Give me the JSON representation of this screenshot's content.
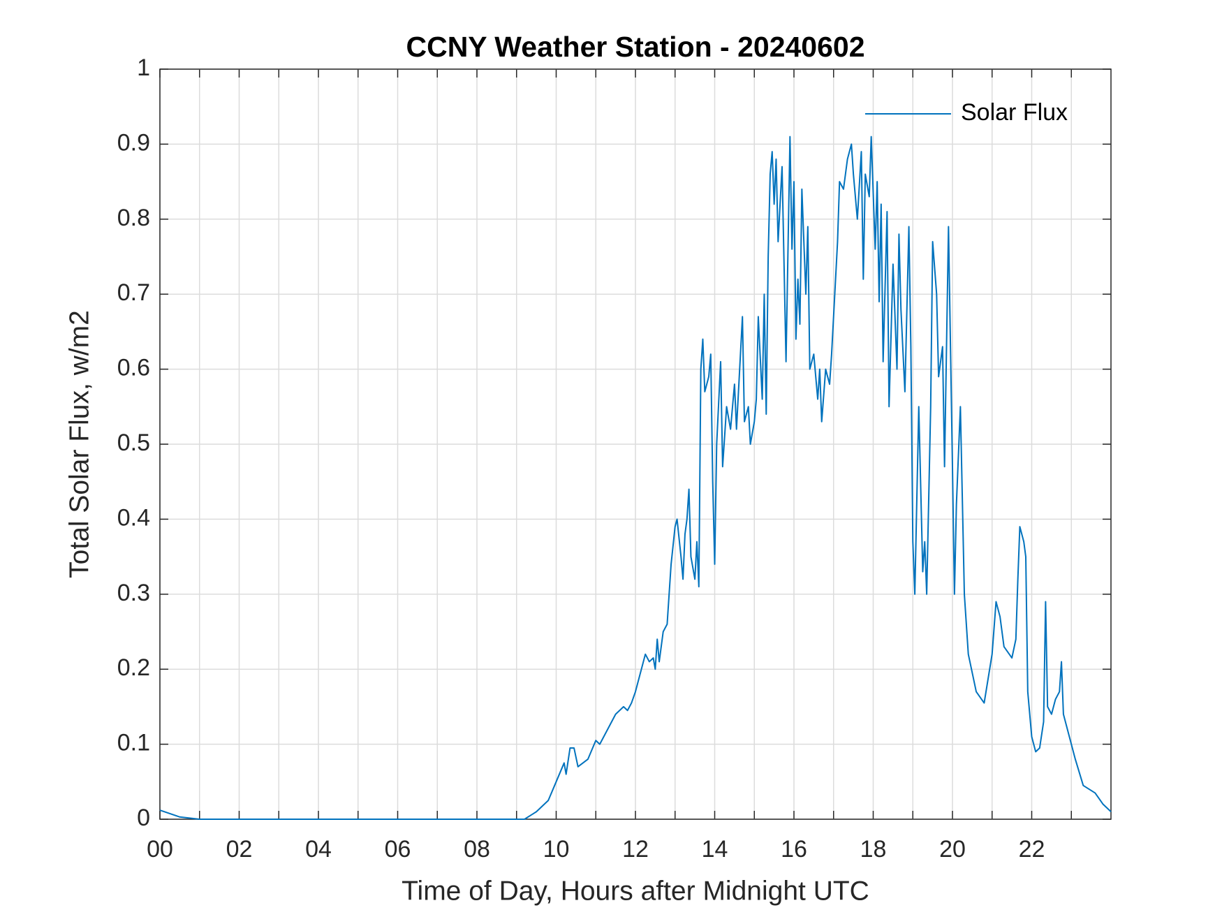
{
  "chart_data": {
    "type": "line",
    "title": "CCNY Weather Station - 20240602",
    "xlabel": "Time of Day, Hours after Midnight UTC",
    "ylabel": "Total Solar Flux, w/m2",
    "x": [
      0,
      0.5,
      1,
      9,
      9.2,
      9.5,
      9.8,
      10,
      10.2,
      10.25,
      10.35,
      10.45,
      10.55,
      10.8,
      11,
      11.1,
      11.3,
      11.5,
      11.7,
      11.8,
      11.9,
      12,
      12.05,
      12.15,
      12.25,
      12.35,
      12.45,
      12.5,
      12.55,
      12.6,
      12.7,
      12.8,
      12.9,
      13,
      13.05,
      13.15,
      13.2,
      13.25,
      13.3,
      13.35,
      13.4,
      13.5,
      13.55,
      13.6,
      13.65,
      13.7,
      13.75,
      13.85,
      13.9,
      13.95,
      14,
      14.05,
      14.15,
      14.2,
      14.3,
      14.4,
      14.5,
      14.55,
      14.6,
      14.7,
      14.75,
      14.85,
      14.9,
      15,
      15.05,
      15.1,
      15.2,
      15.25,
      15.3,
      15.35,
      15.4,
      15.45,
      15.5,
      15.55,
      15.6,
      15.7,
      15.8,
      15.9,
      15.95,
      16,
      16.05,
      16.1,
      16.15,
      16.2,
      16.3,
      16.35,
      16.4,
      16.5,
      16.6,
      16.65,
      16.7,
      16.8,
      16.9,
      16.95,
      17.05,
      17.1,
      17.15,
      17.25,
      17.35,
      17.45,
      17.5,
      17.6,
      17.7,
      17.75,
      17.8,
      17.9,
      17.95,
      18.05,
      18.1,
      18.15,
      18.2,
      18.25,
      18.35,
      18.4,
      18.5,
      18.6,
      18.65,
      18.7,
      18.8,
      18.9,
      18.95,
      19,
      19.05,
      19.15,
      19.25,
      19.3,
      19.35,
      19.45,
      19.5,
      19.6,
      19.65,
      19.75,
      19.8,
      19.9,
      20,
      20.05,
      20.1,
      20.2,
      20.3,
      20.4,
      20.6,
      20.8,
      21,
      21.1,
      21.2,
      21.3,
      21.5,
      21.6,
      21.65,
      21.7,
      21.8,
      21.85,
      21.9,
      22,
      22.1,
      22.2,
      22.3,
      22.35,
      22.4,
      22.5,
      22.6,
      22.7,
      22.75,
      22.8,
      22.95,
      23.1,
      23.3,
      23.6,
      23.8,
      24
    ],
    "series": [
      {
        "name": "Solar Flux",
        "color": "#0072BD",
        "values": [
          0.012,
          0.003,
          0,
          0,
          0,
          0.01,
          0.025,
          0.05,
          0.075,
          0.06,
          0.095,
          0.095,
          0.07,
          0.08,
          0.105,
          0.1,
          0.12,
          0.14,
          0.15,
          0.145,
          0.155,
          0.17,
          0.18,
          0.2,
          0.22,
          0.21,
          0.215,
          0.2,
          0.24,
          0.21,
          0.25,
          0.26,
          0.34,
          0.39,
          0.4,
          0.35,
          0.32,
          0.38,
          0.4,
          0.44,
          0.35,
          0.32,
          0.37,
          0.31,
          0.6,
          0.64,
          0.57,
          0.59,
          0.62,
          0.45,
          0.34,
          0.5,
          0.61,
          0.47,
          0.55,
          0.52,
          0.58,
          0.52,
          0.57,
          0.67,
          0.53,
          0.55,
          0.5,
          0.53,
          0.56,
          0.67,
          0.56,
          0.7,
          0.54,
          0.75,
          0.86,
          0.89,
          0.82,
          0.88,
          0.77,
          0.87,
          0.61,
          0.91,
          0.76,
          0.85,
          0.64,
          0.72,
          0.66,
          0.84,
          0.7,
          0.79,
          0.6,
          0.62,
          0.56,
          0.6,
          0.53,
          0.6,
          0.58,
          0.62,
          0.72,
          0.77,
          0.85,
          0.84,
          0.88,
          0.9,
          0.86,
          0.8,
          0.89,
          0.72,
          0.86,
          0.83,
          0.91,
          0.76,
          0.85,
          0.69,
          0.82,
          0.61,
          0.81,
          0.55,
          0.74,
          0.6,
          0.78,
          0.68,
          0.57,
          0.79,
          0.63,
          0.37,
          0.3,
          0.55,
          0.33,
          0.37,
          0.3,
          0.55,
          0.77,
          0.7,
          0.59,
          0.63,
          0.47,
          0.79,
          0.47,
          0.3,
          0.42,
          0.55,
          0.3,
          0.22,
          0.17,
          0.155,
          0.22,
          0.29,
          0.27,
          0.23,
          0.215,
          0.24,
          0.32,
          0.39,
          0.37,
          0.35,
          0.17,
          0.11,
          0.09,
          0.095,
          0.13,
          0.29,
          0.15,
          0.14,
          0.16,
          0.17,
          0.21,
          0.14,
          0.11,
          0.08,
          0.045,
          0.035,
          0.02,
          0.01
        ]
      }
    ],
    "xlim": [
      0,
      24
    ],
    "xticks": [
      {
        "value": 0,
        "label": "00"
      },
      {
        "value": 2,
        "label": "02"
      },
      {
        "value": 4,
        "label": "04"
      },
      {
        "value": 6,
        "label": "06"
      },
      {
        "value": 8,
        "label": "08"
      },
      10,
      12,
      14,
      16,
      18,
      20,
      22
    ],
    "xminorticks": [
      1,
      3,
      5,
      7,
      9,
      11,
      13,
      15,
      17,
      19,
      21,
      23
    ],
    "ylim": [
      0,
      1
    ],
    "yticks": [
      0,
      0.1,
      0.2,
      0.3,
      0.4,
      0.5,
      0.6,
      0.7,
      0.8,
      0.9,
      1
    ],
    "grid": true,
    "legend": "upper right"
  }
}
